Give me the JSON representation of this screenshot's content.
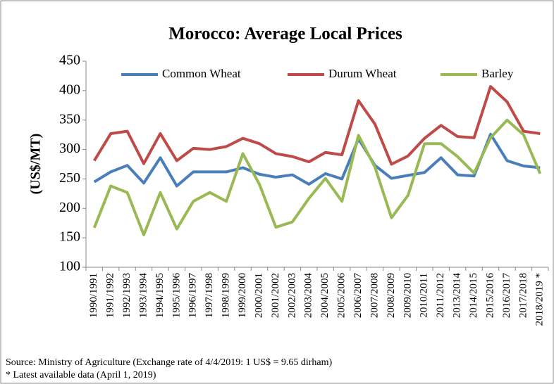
{
  "chart_data": {
    "type": "line",
    "title": "Morocco: Average Local Prices",
    "y_label": "(US$/MT)",
    "categories": [
      "1990/1991",
      "1991/1992",
      "1992/1993",
      "1993/1994",
      "1994/1995",
      "1995/1996",
      "1996/1997",
      "1997/1998",
      "1998/1999",
      "1999/2000",
      "2000/2001",
      "2001/2002",
      "2002/2003",
      "2003/2004",
      "2004/2005",
      "2005/2006",
      "2006/2007",
      "2007/2008",
      "2008/2009",
      "2009/2010",
      "2010/2011",
      "2011/2012",
      "2013/2014",
      "2014/2015",
      "2015/2016",
      "2016/2017",
      "2017/2018",
      "2018/2019 *"
    ],
    "series": [
      {
        "name": "Common Wheat",
        "color": "#4a7ebb",
        "values": [
          245,
          262,
          273,
          243,
          286,
          238,
          262,
          262,
          262,
          269,
          258,
          253,
          257,
          241,
          259,
          250,
          318,
          273,
          251,
          256,
          261,
          286,
          257,
          255,
          326,
          281,
          272,
          269
        ]
      },
      {
        "name": "Durum Wheat",
        "color": "#be4b48",
        "values": [
          281,
          327,
          331,
          276,
          327,
          281,
          302,
          300,
          305,
          319,
          310,
          293,
          288,
          279,
          295,
          291,
          383,
          343,
          275,
          289,
          319,
          341,
          322,
          320,
          407,
          381,
          331,
          327
        ]
      },
      {
        "name": "Barley",
        "color": "#98b954",
        "values": [
          167,
          238,
          227,
          155,
          227,
          165,
          212,
          227,
          212,
          293,
          241,
          168,
          177,
          217,
          251,
          212,
          324,
          270,
          184,
          222,
          310,
          310,
          288,
          260,
          320,
          350,
          325,
          259
        ]
      }
    ],
    "ylim": [
      100,
      450
    ],
    "yticks": [
      100,
      150,
      200,
      250,
      300,
      350,
      400,
      450
    ],
    "legend": "top",
    "notes": [
      "Source: Ministry of Agriculture (Exchange rate of 4/4/2019: 1 US$ = 9.65 dirham)",
      "* Latest available data (April 1, 2019)"
    ]
  }
}
